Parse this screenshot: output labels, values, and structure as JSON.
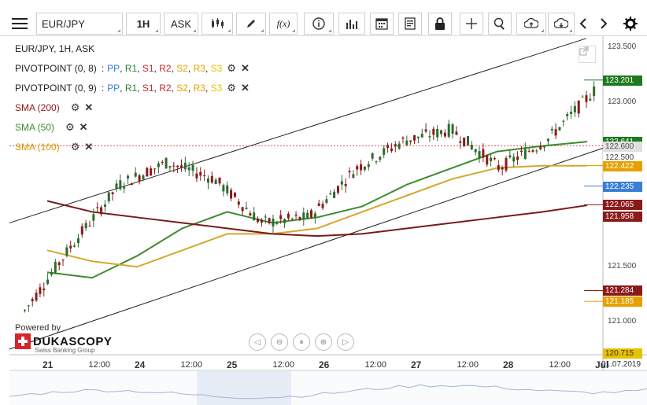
{
  "toolbar": {
    "symbol": "EUR/JPY",
    "timeframe": "1H",
    "side": "ASK",
    "fx_label": "f(x)"
  },
  "legend": {
    "title": "EUR/JPY, 1H, ASK",
    "pivot1": {
      "name": "PIVOTPOINT (0, 8)",
      "sep": ":",
      "pp": "PP",
      "r1": "R1",
      "s1": "S1",
      "r2": "R2",
      "s2": "S2",
      "r3": "R3",
      "s3": "S3"
    },
    "pivot2": {
      "name": "PIVOTPOINT (0, 9)",
      "sep": ":",
      "pp": "PP",
      "r1": "R1",
      "s1": "S1",
      "r2": "R2",
      "s2": "S2",
      "r3": "R3",
      "s3": "S3"
    },
    "sma200": "SMA (200)",
    "sma50": "SMA (50)",
    "sma100": "SMA (100)",
    "colors": {
      "pp": "#3a7fd5",
      "r1": "#2e7d32",
      "s1": "#c62828",
      "r2": "#c62828",
      "s2": "#e6a100",
      "r3": "#e6a100",
      "s3": "#e6c200"
    }
  },
  "axis": {
    "price_ticks": [
      "123.500",
      "123.000",
      "122.500",
      "121.500",
      "121.000"
    ],
    "time_ticks": [
      {
        "label": "21",
        "bold": true
      },
      {
        "label": "12:00",
        "bold": false
      },
      {
        "label": "24",
        "bold": true
      },
      {
        "label": "12:00",
        "bold": false
      },
      {
        "label": "25",
        "bold": true
      },
      {
        "label": "12:00",
        "bold": false
      },
      {
        "label": "26",
        "bold": true
      },
      {
        "label": "12:00",
        "bold": false
      },
      {
        "label": "27",
        "bold": true
      },
      {
        "label": "12:00",
        "bold": false
      },
      {
        "label": "28",
        "bold": true
      },
      {
        "label": "12:00",
        "bold": false
      },
      {
        "label": "Jul",
        "bold": true
      }
    ],
    "date_badge": "01.07.2019"
  },
  "price_labels": [
    {
      "value": "123.201",
      "bg": "#1f7a1f"
    },
    {
      "value": "122.641",
      "bg": "#1f7a1f"
    },
    {
      "value": "122.600",
      "bg": "#e0e0e0",
      "fg": "#555"
    },
    {
      "value": "122.500",
      "bg": "#ffffff",
      "fg": "#444"
    },
    {
      "value": "122.422",
      "bg": "#e6a100"
    },
    {
      "value": "122.235",
      "bg": "#3a7fd5"
    },
    {
      "value": "122.065",
      "bg": "#8b1a1a"
    },
    {
      "value": "121.958",
      "bg": "#8b1a1a"
    },
    {
      "value": "121.284",
      "bg": "#8b1a1a"
    },
    {
      "value": "121.185",
      "bg": "#e6a100"
    },
    {
      "value": "120.715",
      "bg": "#e6c200",
      "fg": "#333"
    }
  ],
  "brand": {
    "powered": "Powered by",
    "name": "DUKASCOPY",
    "sub": "Swiss Banking Group"
  },
  "chart_data": {
    "type": "line",
    "title": "EUR/JPY, 1H, ASK",
    "x": [
      "21",
      "21 12:00",
      "24",
      "24 12:00",
      "25",
      "25 12:00",
      "26",
      "26 12:00",
      "27",
      "27 12:00",
      "28",
      "28 12:00",
      "Jul 1"
    ],
    "ylim": [
      120.7,
      123.6
    ],
    "series": [
      {
        "name": "EUR/JPY",
        "values": [
          121.1,
          121.7,
          122.25,
          122.45,
          122.3,
          121.9,
          121.95,
          122.4,
          122.65,
          122.75,
          122.4,
          122.65,
          123.1
        ]
      },
      {
        "name": "SMA (50)",
        "values": [
          121.45,
          121.4,
          121.6,
          121.85,
          122.0,
          121.9,
          121.95,
          122.05,
          122.25,
          122.4,
          122.55,
          122.6,
          122.64
        ]
      },
      {
        "name": "SMA (100)",
        "values": [
          121.65,
          121.55,
          121.5,
          121.65,
          121.8,
          121.8,
          121.85,
          122.0,
          122.15,
          122.3,
          122.4,
          122.42,
          122.42
        ]
      },
      {
        "name": "SMA (200)",
        "values": [
          122.1,
          122.0,
          121.95,
          121.9,
          121.85,
          121.8,
          121.78,
          121.8,
          121.85,
          121.9,
          121.95,
          122.0,
          122.06
        ]
      }
    ]
  }
}
